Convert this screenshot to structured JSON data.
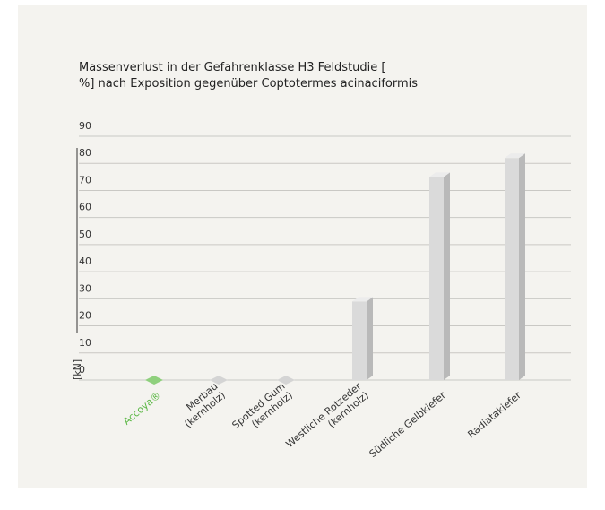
{
  "chart_data": {
    "type": "bar3d",
    "title": [
      "Massenverlust in der Gefahrenklasse H3 Feldstudie [",
      "%] nach Exposition gegenüber Coptotermes acinaciformis"
    ],
    "y_label": "[kN]",
    "categories": [
      "Accoya®",
      "Merbau\n(kernholz)",
      "Spotted Gum\n(kernholz)",
      "Westliche Rotzeder\n(kernholz)",
      "Südliche Gelbkiefer",
      "Radiatakiefer"
    ],
    "values": [
      0,
      0,
      0,
      29,
      75,
      82
    ],
    "colors": [
      "#8fd07d",
      "#d4d4d4",
      "#d4d4d4",
      "#d4d4d4",
      "#d4d4d4",
      "#d4d4d4"
    ],
    "label_colors": [
      "#5cb846",
      "#333333",
      "#333333",
      "#333333",
      "#333333",
      "#333333"
    ],
    "ylim": [
      0,
      90
    ],
    "yticks": [
      0,
      10,
      20,
      30,
      40,
      50,
      60,
      70,
      80,
      90
    ],
    "grid": true
  }
}
